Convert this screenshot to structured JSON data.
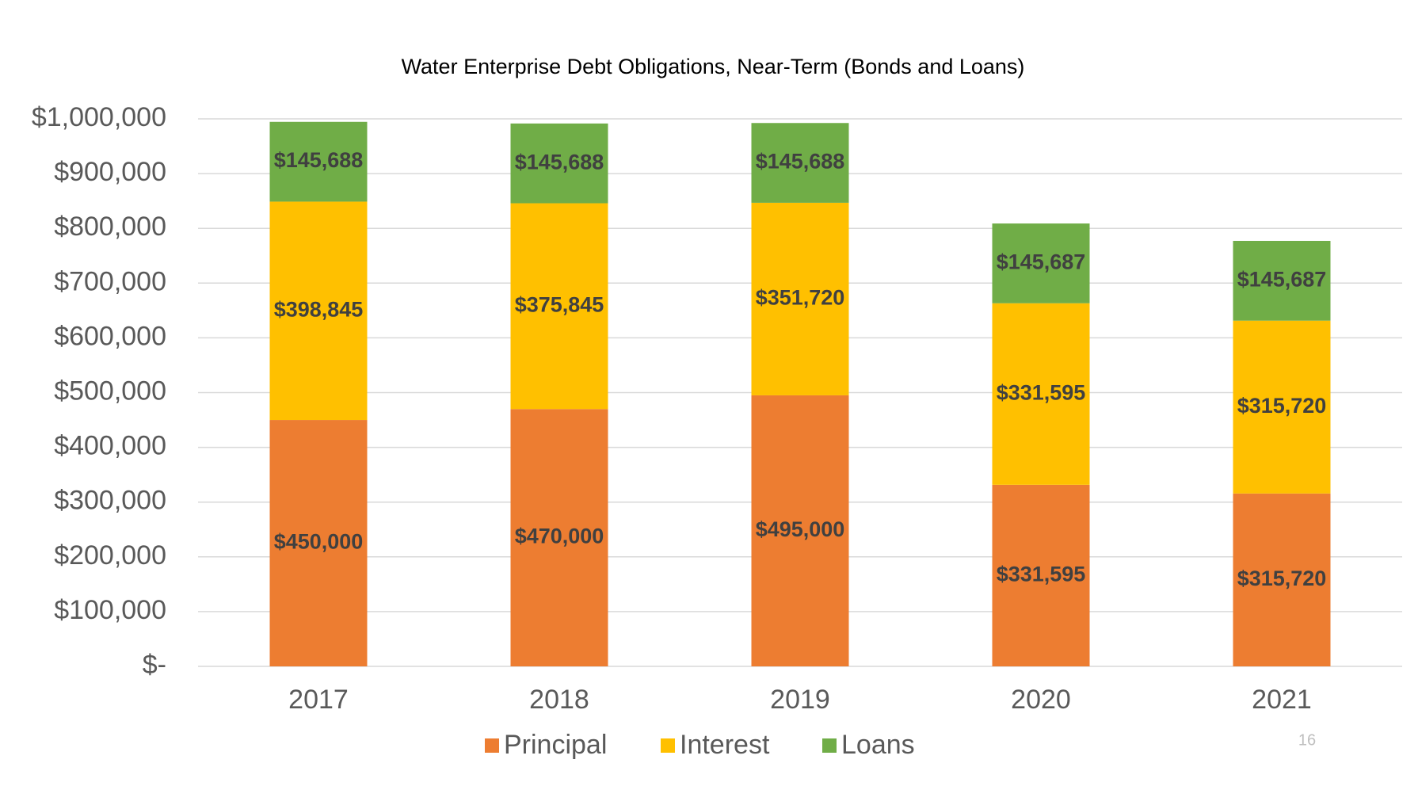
{
  "chart_data": {
    "type": "stacked_bar",
    "title": "Water Enterprise Debt Obligations, Near-Term  (Bonds and Loans)",
    "categories": [
      "2017",
      "2018",
      "2019",
      "2020",
      "2021"
    ],
    "series": [
      {
        "name": "Principal",
        "color": "#ed7d31",
        "values": [
          450000,
          470000,
          495000,
          331595,
          315720
        ],
        "value_labels": [
          "$450,000",
          "$470,000",
          "$495,000",
          "$331,595",
          "$315,720"
        ]
      },
      {
        "name": "Interest",
        "color": "#ffc000",
        "values": [
          398845,
          375845,
          351720,
          331595,
          315720
        ],
        "value_labels": [
          "$398,845",
          "$375,845",
          "$351,720",
          "$331,595",
          "$315,720"
        ]
      },
      {
        "name": "Loans",
        "color": "#70ad47",
        "values": [
          145688,
          145688,
          145688,
          145687,
          145687
        ],
        "value_labels": [
          "$145,688",
          "$145,688",
          "$145,688",
          "$145,687",
          "$145,687"
        ]
      }
    ],
    "ylim": [
      0,
      1000000
    ],
    "yticks": [
      {
        "value": 0,
        "label": "$-"
      },
      {
        "value": 100000,
        "label": "$100,000"
      },
      {
        "value": 200000,
        "label": "$200,000"
      },
      {
        "value": 300000,
        "label": "$300,000"
      },
      {
        "value": 400000,
        "label": "$400,000"
      },
      {
        "value": 500000,
        "label": "$500,000"
      },
      {
        "value": 600000,
        "label": "$600,000"
      },
      {
        "value": 700000,
        "label": "$700,000"
      },
      {
        "value": 800000,
        "label": "$800,000"
      },
      {
        "value": 900000,
        "label": "$900,000"
      },
      {
        "value": 1000000,
        "label": "$1,000,000"
      }
    ],
    "grid": true,
    "legend": "bottom"
  },
  "page_number": "16"
}
